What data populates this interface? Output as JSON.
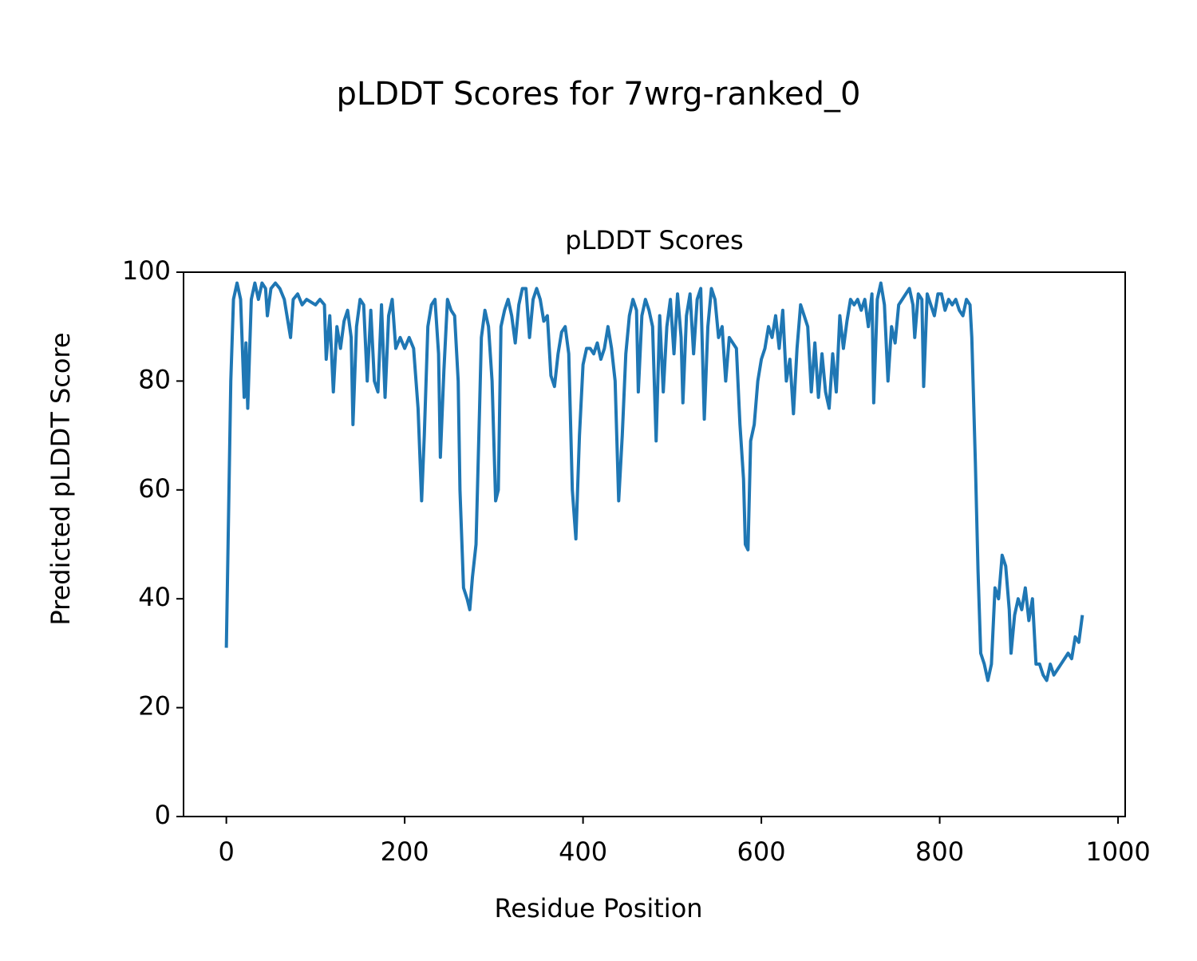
{
  "chart_data": {
    "type": "line",
    "suptitle": "pLDDT Scores for 7wrg-ranked_0",
    "title": "pLDDT Scores",
    "xlabel": "Residue Position",
    "ylabel": "Predicted pLDDT Score",
    "color": "#1f77b4",
    "xlim": [
      -48,
      1008
    ],
    "ylim": [
      0,
      100
    ],
    "xticks": [
      0,
      200,
      400,
      600,
      800,
      1000
    ],
    "yticks": [
      0,
      20,
      40,
      60,
      80,
      100
    ],
    "x": [
      0,
      5,
      8,
      12,
      16,
      20,
      22,
      24,
      28,
      32,
      36,
      40,
      44,
      46,
      50,
      55,
      60,
      65,
      70,
      72,
      75,
      80,
      85,
      90,
      100,
      105,
      110,
      112,
      116,
      120,
      124,
      128,
      132,
      136,
      140,
      142,
      146,
      150,
      154,
      158,
      162,
      166,
      170,
      174,
      178,
      182,
      186,
      190,
      195,
      200,
      205,
      210,
      215,
      219,
      222,
      226,
      230,
      234,
      238,
      240,
      244,
      248,
      252,
      256,
      260,
      262,
      266,
      270,
      273,
      276,
      280,
      284,
      286,
      290,
      294,
      298,
      302,
      305,
      308,
      312,
      316,
      320,
      324,
      328,
      332,
      336,
      340,
      344,
      348,
      352,
      356,
      360,
      364,
      368,
      372,
      376,
      380,
      384,
      388,
      392,
      396,
      400,
      404,
      408,
      412,
      416,
      420,
      424,
      428,
      432,
      436,
      440,
      444,
      448,
      452,
      456,
      460,
      462,
      466,
      470,
      474,
      478,
      482,
      486,
      490,
      494,
      498,
      502,
      506,
      510,
      512,
      516,
      520,
      524,
      528,
      532,
      536,
      540,
      544,
      548,
      552,
      556,
      560,
      564,
      568,
      572,
      576,
      580,
      582,
      585,
      588,
      592,
      596,
      600,
      604,
      608,
      612,
      616,
      620,
      624,
      628,
      632,
      636,
      640,
      644,
      648,
      652,
      656,
      660,
      664,
      668,
      672,
      676,
      680,
      684,
      688,
      692,
      696,
      700,
      704,
      708,
      712,
      716,
      720,
      724,
      726,
      730,
      734,
      738,
      742,
      746,
      750,
      754,
      758,
      762,
      766,
      770,
      772,
      776,
      780,
      782,
      786,
      790,
      794,
      798,
      802,
      806,
      810,
      814,
      818,
      822,
      826,
      830,
      834,
      836,
      840,
      843,
      846,
      850,
      854,
      858,
      862,
      866,
      870,
      874,
      878,
      880,
      884,
      888,
      892,
      896,
      900,
      904,
      908,
      912,
      916,
      920,
      924,
      928,
      932,
      936,
      940,
      944,
      948,
      952,
      956,
      960
    ],
    "values": [
      31,
      80,
      95,
      98,
      95,
      77,
      87,
      75,
      95,
      98,
      95,
      98,
      97,
      92,
      97,
      98,
      97,
      95,
      90,
      88,
      95,
      96,
      94,
      95,
      94,
      95,
      94,
      84,
      92,
      78,
      90,
      86,
      91,
      93,
      88,
      72,
      90,
      95,
      94,
      80,
      93,
      80,
      78,
      94,
      77,
      92,
      95,
      86,
      88,
      86,
      88,
      86,
      75,
      58,
      70,
      90,
      94,
      95,
      85,
      66,
      82,
      95,
      93,
      92,
      80,
      60,
      42,
      40,
      38,
      44,
      50,
      75,
      88,
      93,
      90,
      80,
      58,
      60,
      90,
      93,
      95,
      92,
      87,
      94,
      97,
      97,
      88,
      95,
      97,
      95,
      91,
      92,
      81,
      79,
      85,
      89,
      90,
      85,
      60,
      51,
      70,
      83,
      86,
      86,
      85,
      87,
      84,
      86,
      90,
      86,
      80,
      58,
      70,
      85,
      92,
      95,
      93,
      78,
      92,
      95,
      93,
      90,
      69,
      92,
      78,
      90,
      95,
      85,
      96,
      88,
      76,
      92,
      96,
      85,
      95,
      97,
      73,
      90,
      97,
      95,
      88,
      90,
      80,
      88,
      87,
      86,
      72,
      62,
      50,
      49,
      69,
      72,
      80,
      84,
      86,
      90,
      88,
      92,
      86,
      93,
      80,
      84,
      74,
      86,
      94,
      92,
      90,
      78,
      87,
      77,
      85,
      78,
      75,
      85,
      78,
      92,
      86,
      91,
      95,
      94,
      95,
      93,
      95,
      90,
      96,
      76,
      95,
      98,
      94,
      80,
      90,
      87,
      94,
      95,
      96,
      97,
      94,
      88,
      96,
      95,
      79,
      96,
      94,
      92,
      96,
      96,
      93,
      95,
      94,
      95,
      93,
      92,
      95,
      94,
      88,
      65,
      45,
      30,
      28,
      25,
      28,
      42,
      40,
      48,
      46,
      38,
      30,
      37,
      40,
      38,
      42,
      36,
      40,
      28,
      28,
      26,
      25,
      28,
      26,
      27,
      28,
      29,
      30,
      29,
      33,
      32,
      37
    ]
  }
}
